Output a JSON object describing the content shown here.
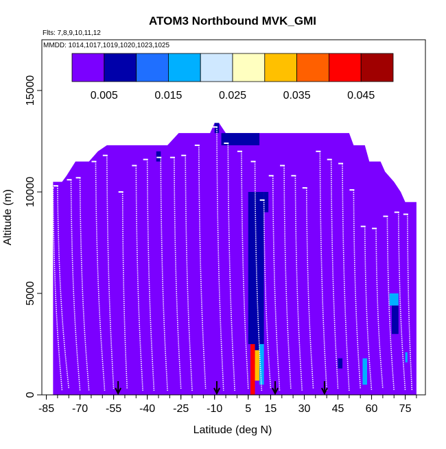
{
  "chart_data": {
    "type": "heatmap",
    "title": "ATOM3 Northbound MVK_GMI",
    "annotations": [
      "Flts: 7,8,9,10,11,12",
      "MMDD: 1014,1017,1019,1020,1023,1025"
    ],
    "xlabel": "Latitude (deg N)",
    "ylabel": "Altitude (m)",
    "xlim": [
      -87,
      84
    ],
    "ylim": [
      0,
      17500
    ],
    "xticks": [
      -85,
      -70,
      -55,
      -40,
      -25,
      -10,
      5,
      15,
      30,
      45,
      60,
      75
    ],
    "xtick_labels": [
      "-85",
      "-70",
      "-55",
      "-40",
      "-25",
      "-10",
      "5",
      "15",
      "30",
      "45",
      "60",
      "75"
    ],
    "yticks": [
      0,
      5000,
      10000,
      15000
    ],
    "ytick_labels": [
      "0",
      "5000",
      "10000",
      "15000"
    ],
    "colorbar": {
      "range": [
        0,
        0.05
      ],
      "segments": 10,
      "tick_values": [
        0.005,
        0.015,
        0.025,
        0.035,
        0.045
      ],
      "tick_labels": [
        "0.005",
        "0.015",
        "0.025",
        "0.035",
        "0.045"
      ],
      "colors": [
        "#7b00ff",
        "#0000aa",
        "#1f6fff",
        "#00b0ff",
        "#cfe8ff",
        "#ffffc0",
        "#ffc000",
        "#ff6000",
        "#ff0000",
        "#a00000"
      ]
    },
    "background_value": 0.001,
    "coverage_top": [
      [
        -82,
        10500
      ],
      [
        -80,
        10500
      ],
      [
        -78,
        10500
      ],
      [
        -76,
        10800
      ],
      [
        -72,
        11500
      ],
      [
        -66,
        11500
      ],
      [
        -62,
        12000
      ],
      [
        -58,
        12300
      ],
      [
        -52,
        12300
      ],
      [
        -45,
        12300
      ],
      [
        -38,
        12300
      ],
      [
        -31,
        12300
      ],
      [
        -26,
        12900
      ],
      [
        -12,
        12900
      ],
      [
        -10,
        13400
      ],
      [
        -8,
        13400
      ],
      [
        -5,
        12900
      ],
      [
        50,
        12900
      ],
      [
        52,
        12300
      ],
      [
        57,
        12300
      ],
      [
        59,
        11500
      ],
      [
        64,
        11500
      ],
      [
        66,
        11000
      ],
      [
        70,
        10500
      ],
      [
        73,
        10000
      ],
      [
        75,
        9500
      ],
      [
        80,
        9500
      ]
    ],
    "hotspots": [
      {
        "lat": [
          5,
          12
        ],
        "alt": [
          2500,
          10000
        ],
        "value": 0.007
      },
      {
        "lat": [
          7,
          11
        ],
        "alt": [
          1500,
          3500
        ],
        "value": 0.009
      },
      {
        "lat": [
          6,
          8
        ],
        "alt": [
          0,
          2500
        ],
        "value": 0.041
      },
      {
        "lat": [
          8,
          10
        ],
        "alt": [
          700,
          2200
        ],
        "value": 0.03
      },
      {
        "lat": [
          10,
          12
        ],
        "alt": [
          500,
          2500
        ],
        "value": 0.018
      },
      {
        "lat": [
          68,
          72
        ],
        "alt": [
          4400,
          5000
        ],
        "value": 0.015
      },
      {
        "lat": [
          69,
          72
        ],
        "alt": [
          3000,
          4400
        ],
        "value": 0.006
      },
      {
        "lat": [
          -7,
          10
        ],
        "alt": [
          12300,
          12900
        ],
        "value": 0.006
      },
      {
        "lat": [
          -10,
          -8
        ],
        "alt": [
          12900,
          13400
        ],
        "value": 0.007
      },
      {
        "lat": [
          56,
          58
        ],
        "alt": [
          500,
          1800
        ],
        "value": 0.016
      },
      {
        "lat": [
          75,
          76
        ],
        "alt": [
          1600,
          2100
        ],
        "value": 0.018
      },
      {
        "lat": [
          45,
          47
        ],
        "alt": [
          1300,
          1800
        ],
        "value": 0.007
      },
      {
        "lat": [
          -45,
          -43
        ],
        "alt": [
          2000,
          4000
        ],
        "value": 0.005
      },
      {
        "lat": [
          -30,
          -28
        ],
        "alt": [
          1500,
          3000
        ],
        "value": 0.005
      },
      {
        "lat": [
          -36,
          -34
        ],
        "alt": [
          11500,
          12000
        ],
        "value": 0.006
      },
      {
        "lat": [
          12,
          14
        ],
        "alt": [
          9000,
          10000
        ],
        "value": 0.006
      }
    ],
    "profiles": [
      {
        "lat_top": -82,
        "alt_top": 10200,
        "lat_bottom": -78,
        "alt_bottom": 200
      },
      {
        "lat_top": -80,
        "alt_top": 10300,
        "lat_bottom": -75,
        "alt_bottom": 300
      },
      {
        "lat_top": -74,
        "alt_top": 10600,
        "lat_bottom": -70,
        "alt_bottom": 200
      },
      {
        "lat_top": -70,
        "alt_top": 10700,
        "lat_bottom": -66,
        "alt_bottom": 200
      },
      {
        "lat_top": -63,
        "alt_top": 11500,
        "lat_bottom": -59,
        "alt_bottom": 200
      },
      {
        "lat_top": -58,
        "alt_top": 11800,
        "lat_bottom": -55,
        "alt_bottom": 300
      },
      {
        "lat_top": -51,
        "alt_top": 10000,
        "lat_bottom": -49,
        "alt_bottom": 300
      },
      {
        "lat_top": -45,
        "alt_top": 11300,
        "lat_bottom": -42,
        "alt_bottom": 200
      },
      {
        "lat_top": -40,
        "alt_top": 11600,
        "lat_bottom": -37,
        "alt_bottom": 200
      },
      {
        "lat_top": -34,
        "alt_top": 11700,
        "lat_bottom": -31,
        "alt_bottom": 200
      },
      {
        "lat_top": -28,
        "alt_top": 11700,
        "lat_bottom": -25,
        "alt_bottom": 300
      },
      {
        "lat_top": -23,
        "alt_top": 11800,
        "lat_bottom": -20,
        "alt_bottom": 200
      },
      {
        "lat_top": -17,
        "alt_top": 12300,
        "lat_bottom": -14,
        "alt_bottom": 300
      },
      {
        "lat_top": -9,
        "alt_top": 13200,
        "lat_bottom": -6,
        "alt_bottom": 200
      },
      {
        "lat_top": -4,
        "alt_top": 12400,
        "lat_bottom": -1,
        "alt_bottom": 200
      },
      {
        "lat_top": 2,
        "alt_top": 12000,
        "lat_bottom": 5,
        "alt_bottom": 300
      },
      {
        "lat_top": 8,
        "alt_top": 11500,
        "lat_bottom": 11,
        "alt_bottom": 200
      },
      {
        "lat_top": 12,
        "alt_top": 9600,
        "lat_bottom": 15,
        "alt_bottom": 300
      },
      {
        "lat_top": 16,
        "alt_top": 10800,
        "lat_bottom": 19,
        "alt_bottom": 200
      },
      {
        "lat_top": 21,
        "alt_top": 11300,
        "lat_bottom": 24,
        "alt_bottom": 300
      },
      {
        "lat_top": 26,
        "alt_top": 10800,
        "lat_bottom": 29,
        "alt_bottom": 200
      },
      {
        "lat_top": 31,
        "alt_top": 10200,
        "lat_bottom": 34,
        "alt_bottom": 300
      },
      {
        "lat_top": 37,
        "alt_top": 12000,
        "lat_bottom": 40,
        "alt_bottom": 200
      },
      {
        "lat_top": 42,
        "alt_top": 11600,
        "lat_bottom": 45,
        "alt_bottom": 300
      },
      {
        "lat_top": 47,
        "alt_top": 11400,
        "lat_bottom": 50,
        "alt_bottom": 200
      },
      {
        "lat_top": 52,
        "alt_top": 10100,
        "lat_bottom": 55,
        "alt_bottom": 300
      },
      {
        "lat_top": 57,
        "alt_top": 8300,
        "lat_bottom": 60,
        "alt_bottom": 200
      },
      {
        "lat_top": 62,
        "alt_top": 8200,
        "lat_bottom": 65,
        "alt_bottom": 300
      },
      {
        "lat_top": 67,
        "alt_top": 8800,
        "lat_bottom": 70,
        "alt_bottom": 200
      },
      {
        "lat_top": 72,
        "alt_top": 9000,
        "lat_bottom": 75,
        "alt_bottom": 200
      },
      {
        "lat_top": 76,
        "alt_top": 8900,
        "lat_bottom": 78,
        "alt_bottom": 200
      }
    ],
    "arrows_lat": [
      -53,
      -9,
      17,
      39
    ],
    "grid": false,
    "legend": "top"
  }
}
